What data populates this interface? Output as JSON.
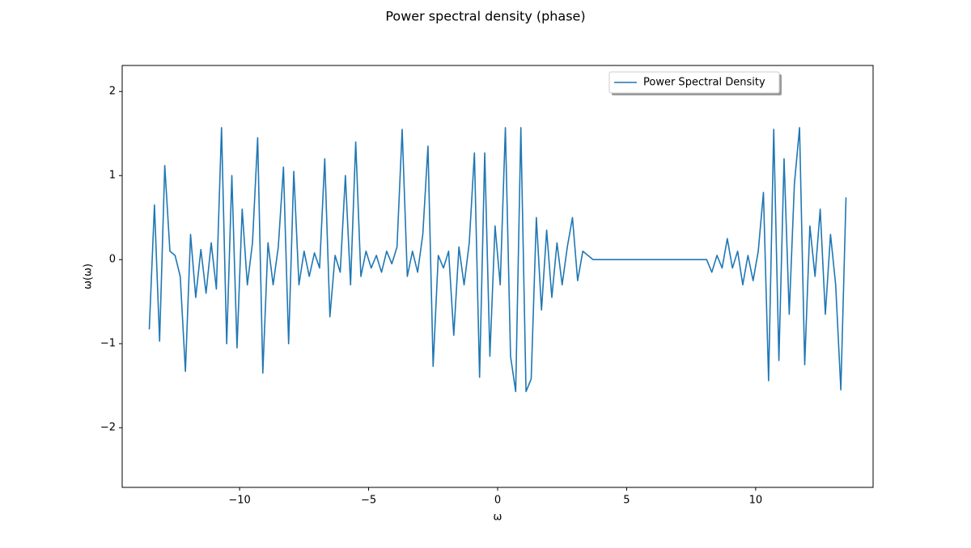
{
  "chart_data": {
    "type": "line",
    "title": "Power spectral density (phase)",
    "xlabel": "ω",
    "ylabel": "ω(ω)",
    "x": [
      -13.5,
      -13.3,
      -13.1,
      -12.9,
      -12.7,
      -12.5,
      -12.3,
      -12.1,
      -11.9,
      -11.7,
      -11.5,
      -11.3,
      -11.1,
      -10.9,
      -10.7,
      -10.5,
      -10.3,
      -10.1,
      -9.9,
      -9.7,
      -9.5,
      -9.3,
      -9.1,
      -8.9,
      -8.7,
      -8.5,
      -8.3,
      -8.1,
      -7.9,
      -7.7,
      -7.5,
      -7.3,
      -7.1,
      -6.9,
      -6.7,
      -6.5,
      -6.3,
      -6.1,
      -5.9,
      -5.7,
      -5.5,
      -5.3,
      -5.1,
      -4.9,
      -4.7,
      -4.5,
      -4.3,
      -4.1,
      -3.9,
      -3.7,
      -3.5,
      -3.3,
      -3.1,
      -2.9,
      -2.7,
      -2.5,
      -2.3,
      -2.1,
      -1.9,
      -1.7,
      -1.5,
      -1.3,
      -1.1,
      -0.9,
      -0.7,
      -0.5,
      -0.3,
      -0.1,
      0.1,
      0.3,
      0.5,
      0.7,
      0.9,
      1.1,
      1.3,
      1.5,
      1.7,
      1.9,
      2.1,
      2.3,
      2.5,
      2.7,
      2.9,
      3.1,
      3.3,
      3.5,
      3.7,
      3.9,
      4.1,
      4.3,
      4.5,
      4.7,
      4.9,
      5.1,
      5.3,
      5.5,
      5.7,
      5.9,
      6.1,
      6.3,
      6.5,
      6.7,
      6.9,
      7.1,
      7.3,
      7.5,
      7.7,
      7.9,
      8.1,
      8.3,
      8.5,
      8.7,
      8.9,
      9.1,
      9.3,
      9.5,
      9.7,
      9.9,
      10.1,
      10.3,
      10.5,
      10.7,
      10.9,
      11.1,
      11.3,
      11.5,
      11.7,
      11.9,
      12.1,
      12.3,
      12.5,
      12.7,
      12.9,
      13.1,
      13.3,
      13.5
    ],
    "series": [
      {
        "name": "Power Spectral Density",
        "color": "#1f77b4",
        "values": [
          -0.83,
          0.65,
          -0.97,
          1.12,
          0.1,
          0.05,
          -0.2,
          -1.33,
          0.3,
          -0.45,
          0.12,
          -0.4,
          0.2,
          -0.35,
          1.57,
          -1.0,
          1.0,
          -1.05,
          0.6,
          -0.3,
          0.2,
          1.45,
          -1.35,
          0.2,
          -0.3,
          0.15,
          1.1,
          -1.0,
          1.05,
          -0.3,
          0.1,
          -0.2,
          0.08,
          -0.1,
          1.2,
          -0.68,
          0.05,
          -0.15,
          1.0,
          -0.3,
          1.4,
          -0.2,
          0.1,
          -0.1,
          0.05,
          -0.15,
          0.1,
          -0.05,
          0.15,
          1.55,
          -0.2,
          0.1,
          -0.15,
          0.3,
          1.35,
          -1.27,
          0.05,
          -0.1,
          0.1,
          -0.9,
          0.15,
          -0.3,
          0.2,
          1.27,
          -1.4,
          1.27,
          -1.15,
          0.4,
          -0.3,
          1.57,
          -1.15,
          -1.57,
          1.57,
          -1.57,
          -1.42,
          0.5,
          -0.6,
          0.35,
          -0.45,
          0.2,
          -0.3,
          0.15,
          0.5,
          -0.25,
          0.1,
          0.05,
          0,
          0,
          0,
          0,
          0,
          0,
          0,
          0,
          0,
          0,
          0,
          0,
          0,
          0,
          0,
          0,
          0,
          0,
          0,
          0,
          0,
          0,
          0,
          -0.15,
          0.05,
          -0.1,
          0.25,
          -0.1,
          0.1,
          -0.3,
          0.05,
          -0.25,
          0.1,
          0.8,
          -1.44,
          1.55,
          -1.2,
          1.2,
          -0.65,
          0.9,
          1.57,
          -1.25,
          0.4,
          -0.2,
          0.6,
          -0.65,
          0.3,
          -0.3,
          -1.55,
          0.74
        ]
      }
    ],
    "xlim": [
      -14.55,
      14.55
    ],
    "ylim": [
      -2.71,
      2.31
    ],
    "xticks": [
      {
        "value": -10,
        "label": "−10"
      },
      {
        "value": -5,
        "label": "−5"
      },
      0,
      5,
      10
    ],
    "yticks": [
      {
        "value": -2,
        "label": "−2"
      },
      {
        "value": -1,
        "label": "−1"
      },
      0,
      1,
      2
    ],
    "legend": "upper right",
    "grid": false
  }
}
